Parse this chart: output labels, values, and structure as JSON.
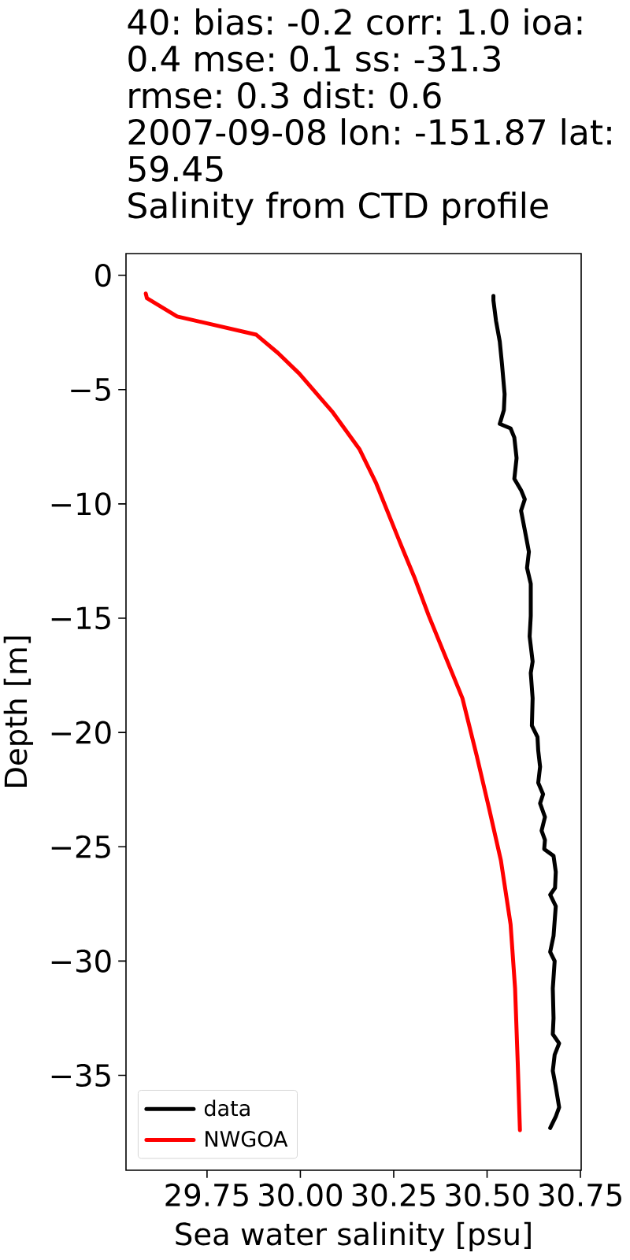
{
  "chart_data": {
    "type": "line",
    "title": "Salinity from CTD profile",
    "subtitle": "40: bias: -0.2  corr: 1.0  ioa: 0.4  mse: 0.1  ss: -31.3  rmse: 0.3  dist: 0.6",
    "annotations": [
      "2007-09-08 lon: -151.87 lat: 59.45"
    ],
    "xlabel": "Sea water salinity [psu]",
    "ylabel": "Depth [m]",
    "xlim": [
      29.533,
      30.752
    ],
    "ylim": [
      -39.15,
      0.95
    ],
    "xticks": [
      29.75,
      {
        "value": 30,
        "label": "30.00"
      },
      30.25,
      {
        "value": 30.5,
        "label": "30.50"
      },
      30.75
    ],
    "yticks": [
      0,
      {
        "value": -5,
        "label": "−5"
      },
      {
        "value": -10,
        "label": "−10"
      },
      {
        "value": -15,
        "label": "−15"
      },
      {
        "value": -20,
        "label": "−20"
      },
      {
        "value": -25,
        "label": "−25"
      },
      {
        "value": -30,
        "label": "−30"
      },
      {
        "value": -35,
        "label": "−35"
      }
    ],
    "legend": "bottom left",
    "series": [
      {
        "name": "data",
        "color": "#000000",
        "x": [
          30.517,
          30.517,
          30.524,
          30.534,
          30.54,
          30.547,
          30.545,
          30.534,
          30.563,
          30.573,
          30.579,
          30.573,
          30.591,
          30.601,
          30.591,
          30.604,
          30.612,
          30.607,
          30.617,
          30.617,
          30.614,
          30.622,
          30.617,
          30.622,
          30.62,
          30.635,
          30.637,
          30.642,
          30.637,
          30.65,
          30.642,
          30.655,
          30.646,
          30.655,
          30.653,
          30.678,
          30.684,
          30.682,
          30.669,
          30.684,
          30.678,
          30.669,
          30.681,
          30.676,
          30.678,
          30.676,
          30.693,
          30.681,
          30.676,
          30.684,
          30.693,
          30.684,
          30.669
        ],
        "values": [
          -0.9,
          -1.1,
          -2.0,
          -2.9,
          -3.9,
          -5.2,
          -5.9,
          -6.5,
          -6.7,
          -7.1,
          -8.0,
          -8.9,
          -9.4,
          -9.8,
          -10.3,
          -11.4,
          -12.1,
          -12.8,
          -13.5,
          -14.9,
          -15.8,
          -16.9,
          -17.4,
          -18.5,
          -19.7,
          -20.2,
          -20.8,
          -21.5,
          -22.2,
          -22.7,
          -23.1,
          -23.7,
          -24.3,
          -24.7,
          -25.1,
          -25.4,
          -26.1,
          -26.8,
          -27.1,
          -27.6,
          -28.9,
          -29.6,
          -30.0,
          -31.2,
          -32.5,
          -33.2,
          -33.6,
          -34.1,
          -34.8,
          -35.5,
          -36.4,
          -36.8,
          -37.3
        ]
      },
      {
        "name": "NWGOA",
        "color": "#ff0000",
        "x": [
          29.586,
          29.589,
          29.67,
          29.882,
          29.94,
          29.997,
          30.087,
          30.158,
          30.203,
          30.267,
          30.305,
          30.344,
          30.389,
          30.434,
          30.472,
          30.505,
          30.537,
          30.563,
          30.575,
          30.582,
          30.588
        ],
        "values": [
          -0.8,
          -1.0,
          -1.8,
          -2.6,
          -3.4,
          -4.3,
          -6.0,
          -7.6,
          -9.1,
          -11.7,
          -13.2,
          -14.9,
          -16.7,
          -18.5,
          -21.0,
          -23.3,
          -25.6,
          -28.4,
          -31.2,
          -34.4,
          -37.4
        ]
      }
    ]
  }
}
